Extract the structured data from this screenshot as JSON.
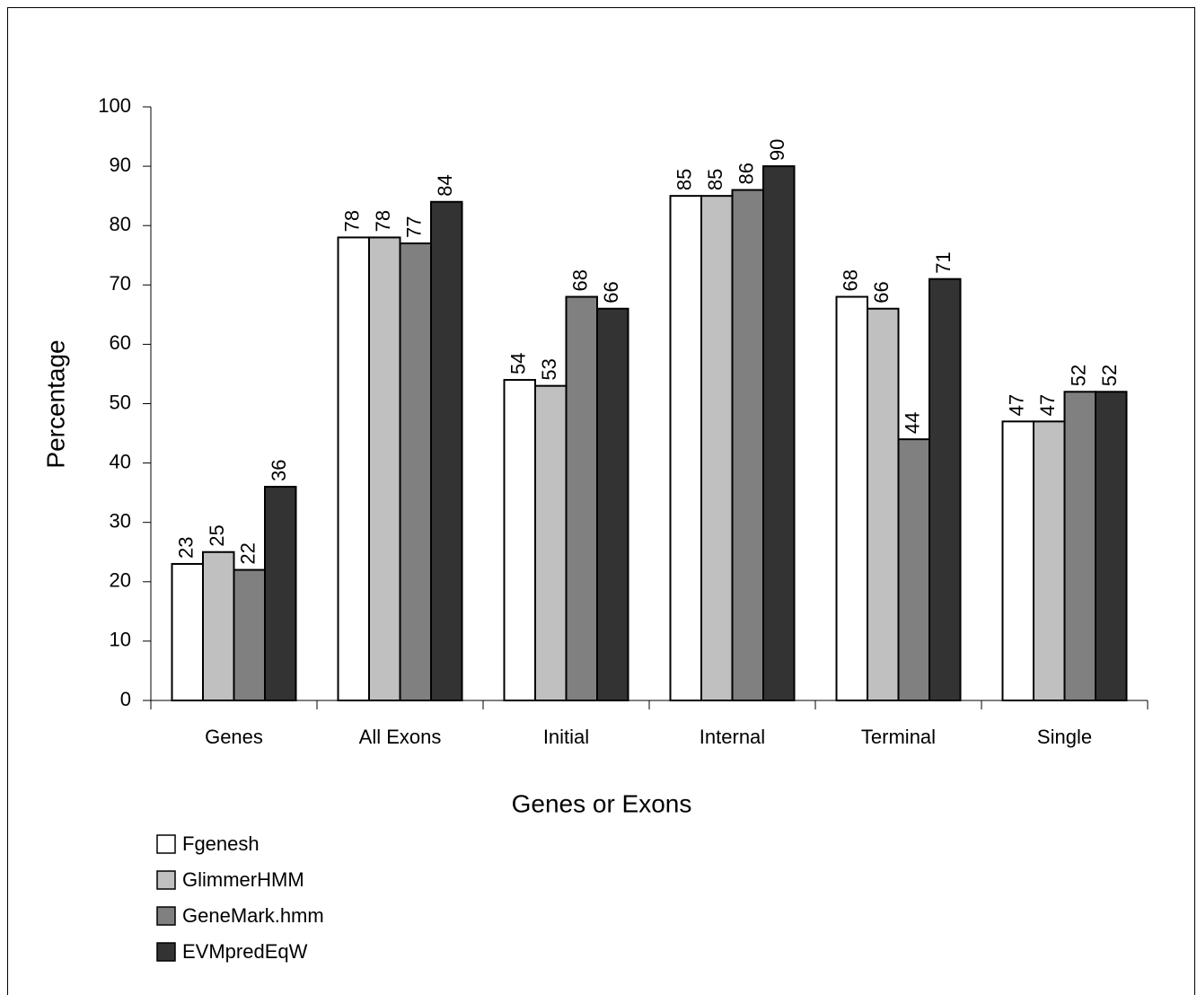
{
  "chart_data": {
    "type": "bar",
    "categories": [
      "Genes",
      "All Exons",
      "Initial",
      "Internal",
      "Terminal",
      "Single"
    ],
    "series": [
      {
        "name": "Fgenesh",
        "color": "#ffffff",
        "values": [
          23,
          78,
          54,
          85,
          68,
          47
        ]
      },
      {
        "name": "GlimmerHMM",
        "color": "#c0c0c0",
        "values": [
          25,
          78,
          53,
          85,
          66,
          47
        ]
      },
      {
        "name": "GeneMark.hmm",
        "color": "#808080",
        "values": [
          22,
          77,
          68,
          86,
          44,
          52
        ]
      },
      {
        "name": "EVMpredEqW",
        "color": "#333333",
        "values": [
          36,
          84,
          66,
          90,
          71,
          52
        ]
      }
    ],
    "xlabel": "Genes or Exons",
    "ylabel": "Percentage",
    "ylim": [
      0,
      100
    ],
    "yticks": [
      0,
      10,
      20,
      30,
      40,
      50,
      60,
      70,
      80,
      90,
      100
    ],
    "grid": false
  }
}
